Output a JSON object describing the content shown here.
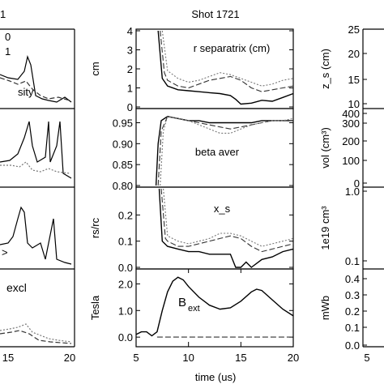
{
  "chart_data": {
    "type": "line",
    "title": "Shot 1721",
    "xlabel": "time (us)",
    "xlim": [
      5,
      20
    ],
    "x_ticks": [
      "5",
      "10",
      "15",
      "20"
    ],
    "left_column": {
      "panels": [
        {
          "label_fragments": [
            "0",
            "1",
            "sity"
          ]
        },
        {
          "label_fragments": []
        },
        {
          "label_fragments": [
            ">"
          ]
        },
        {
          "label_fragments": [
            "excl"
          ]
        }
      ],
      "x_ticks": [
        "15",
        "20"
      ],
      "title_fragment": "1"
    },
    "center_column": {
      "panels": [
        {
          "id": "r_separatrix",
          "annotation": "r separatrix (cm)",
          "ylabel": "cm",
          "ylim": [
            0,
            4
          ],
          "y_ticks": [
            "0",
            "1",
            "2",
            "3",
            "4"
          ],
          "series": [
            {
              "style": "solid",
              "x": [
                7.1,
                7.5,
                8,
                9,
                10,
                11,
                12,
                13,
                14,
                14.5,
                15,
                16,
                17,
                18,
                19,
                20
              ],
              "y": [
                4,
                1.5,
                1.1,
                0.9,
                0.85,
                0.8,
                0.75,
                0.7,
                0.6,
                0.4,
                0.15,
                0.2,
                0.35,
                0.3,
                0.5,
                0.7
              ]
            },
            {
              "style": "dashed",
              "x": [
                7.3,
                7.7,
                8,
                9,
                10,
                11,
                12,
                13,
                14,
                15,
                16,
                17,
                18,
                19,
                20
              ],
              "y": [
                4,
                1.8,
                1.4,
                1.1,
                1.0,
                1.2,
                1.4,
                1.5,
                1.6,
                1.4,
                1.0,
                0.8,
                0.9,
                1.0,
                1.1
              ]
            },
            {
              "style": "dotted",
              "x": [
                7.5,
                8,
                9,
                10,
                11,
                12,
                13,
                14,
                15,
                16,
                17,
                18,
                19,
                20
              ],
              "y": [
                4,
                1.9,
                1.5,
                1.3,
                1.4,
                1.6,
                1.8,
                1.7,
                1.5,
                1.3,
                1.1,
                1.2,
                1.4,
                1.5
              ]
            }
          ]
        },
        {
          "id": "beta_aver",
          "annotation": "beta aver",
          "ylabel": "",
          "ylim": [
            0.8,
            0.98
          ],
          "y_ticks": [
            "0.80",
            "0.85",
            "0.90",
            "0.95"
          ],
          "series": [
            {
              "style": "solid",
              "x": [
                6.9,
                7.1,
                7.4,
                8,
                9,
                10,
                11,
                12,
                13,
                14,
                15,
                16,
                17,
                18,
                19,
                20
              ],
              "y": [
                0.8,
                0.9,
                0.955,
                0.965,
                0.96,
                0.955,
                0.955,
                0.95,
                0.95,
                0.95,
                0.95,
                0.95,
                0.955,
                0.955,
                0.955,
                0.955
              ]
            },
            {
              "style": "dashed",
              "x": [
                7.1,
                7.4,
                8,
                9,
                10,
                11,
                12,
                13,
                14,
                15,
                16,
                17,
                18,
                19,
                20
              ],
              "y": [
                0.8,
                0.93,
                0.965,
                0.96,
                0.955,
                0.95,
                0.945,
                0.94,
                0.935,
                0.94,
                0.945,
                0.95,
                0.955,
                0.955,
                0.955
              ]
            },
            {
              "style": "dotted",
              "x": [
                7.3,
                7.6,
                8,
                9,
                10,
                11,
                12,
                13,
                14,
                15,
                16,
                17,
                18,
                19,
                20
              ],
              "y": [
                0.8,
                0.93,
                0.965,
                0.96,
                0.955,
                0.945,
                0.935,
                0.925,
                0.925,
                0.935,
                0.945,
                0.95,
                0.955,
                0.955,
                0.96
              ]
            }
          ]
        },
        {
          "id": "x_s",
          "annotation": "x_s",
          "ylabel": "rs/rc",
          "ylim": [
            0,
            0.3
          ],
          "y_ticks": [
            "0.0",
            "0.1",
            "0.2"
          ],
          "series": [
            {
              "style": "solid",
              "x": [
                7.2,
                7.5,
                8,
                9,
                10,
                11,
                12,
                13,
                14,
                14.5,
                15,
                15.5,
                16,
                17,
                18,
                19,
                20
              ],
              "y": [
                0.3,
                0.1,
                0.08,
                0.07,
                0.06,
                0.06,
                0.05,
                0.05,
                0.05,
                0.0,
                0.0,
                0.02,
                0.0,
                0.03,
                0.04,
                0.06,
                0.07
              ]
            },
            {
              "style": "dashed",
              "x": [
                7.4,
                7.8,
                8,
                9,
                10,
                11,
                12,
                13,
                14,
                15,
                16,
                17,
                18,
                19,
                20
              ],
              "y": [
                0.3,
                0.11,
                0.1,
                0.08,
                0.08,
                0.09,
                0.1,
                0.11,
                0.12,
                0.11,
                0.08,
                0.06,
                0.07,
                0.08,
                0.09
              ]
            },
            {
              "style": "dotted",
              "x": [
                7.6,
                8,
                9,
                10,
                11,
                12,
                13,
                14,
                15,
                16,
                17,
                18,
                19,
                20
              ],
              "y": [
                0.3,
                0.12,
                0.1,
                0.09,
                0.1,
                0.11,
                0.13,
                0.13,
                0.12,
                0.1,
                0.08,
                0.09,
                0.1,
                0.11
              ]
            }
          ]
        },
        {
          "id": "B_ext",
          "annotation": "B",
          "annotation_sub": "ext",
          "ylabel": "Tesla",
          "ylim": [
            -0.3,
            2.5
          ],
          "y_ticks": [
            "0.0",
            "1.0",
            "2.0"
          ],
          "series": [
            {
              "style": "solid",
              "x": [
                5,
                5.5,
                6,
                6.5,
                7,
                7.5,
                8,
                8.5,
                9,
                9.5,
                10,
                11,
                12,
                13,
                14,
                15,
                16,
                16.5,
                17,
                18,
                19,
                20
              ],
              "y": [
                0.1,
                0.2,
                0.2,
                0.05,
                0.2,
                1.0,
                1.7,
                2.1,
                2.25,
                2.15,
                1.9,
                1.5,
                1.2,
                1.05,
                1.1,
                1.35,
                1.7,
                1.8,
                1.75,
                1.4,
                1.05,
                0.8
              ]
            },
            {
              "style": "dashed",
              "x": [
                7,
                20
              ],
              "y": [
                0.0,
                0.0
              ]
            }
          ]
        }
      ]
    },
    "right_column": {
      "panels": [
        {
          "ylabel": "z_s (cm)",
          "y_ticks": [
            "10",
            "15",
            "20",
            "25"
          ]
        },
        {
          "ylabel": "vol (cm³)",
          "y_ticks": [
            "0",
            "100",
            "200",
            "300",
            "400"
          ]
        },
        {
          "ylabel": "1e19 cm³",
          "y_ticks": [
            "0.1",
            "1.0"
          ]
        },
        {
          "ylabel": "mWb",
          "y_ticks": [
            "0.0",
            "0.1",
            "0.2",
            "0.3",
            "0.4"
          ]
        }
      ],
      "x_ticks": [
        "5"
      ]
    }
  }
}
